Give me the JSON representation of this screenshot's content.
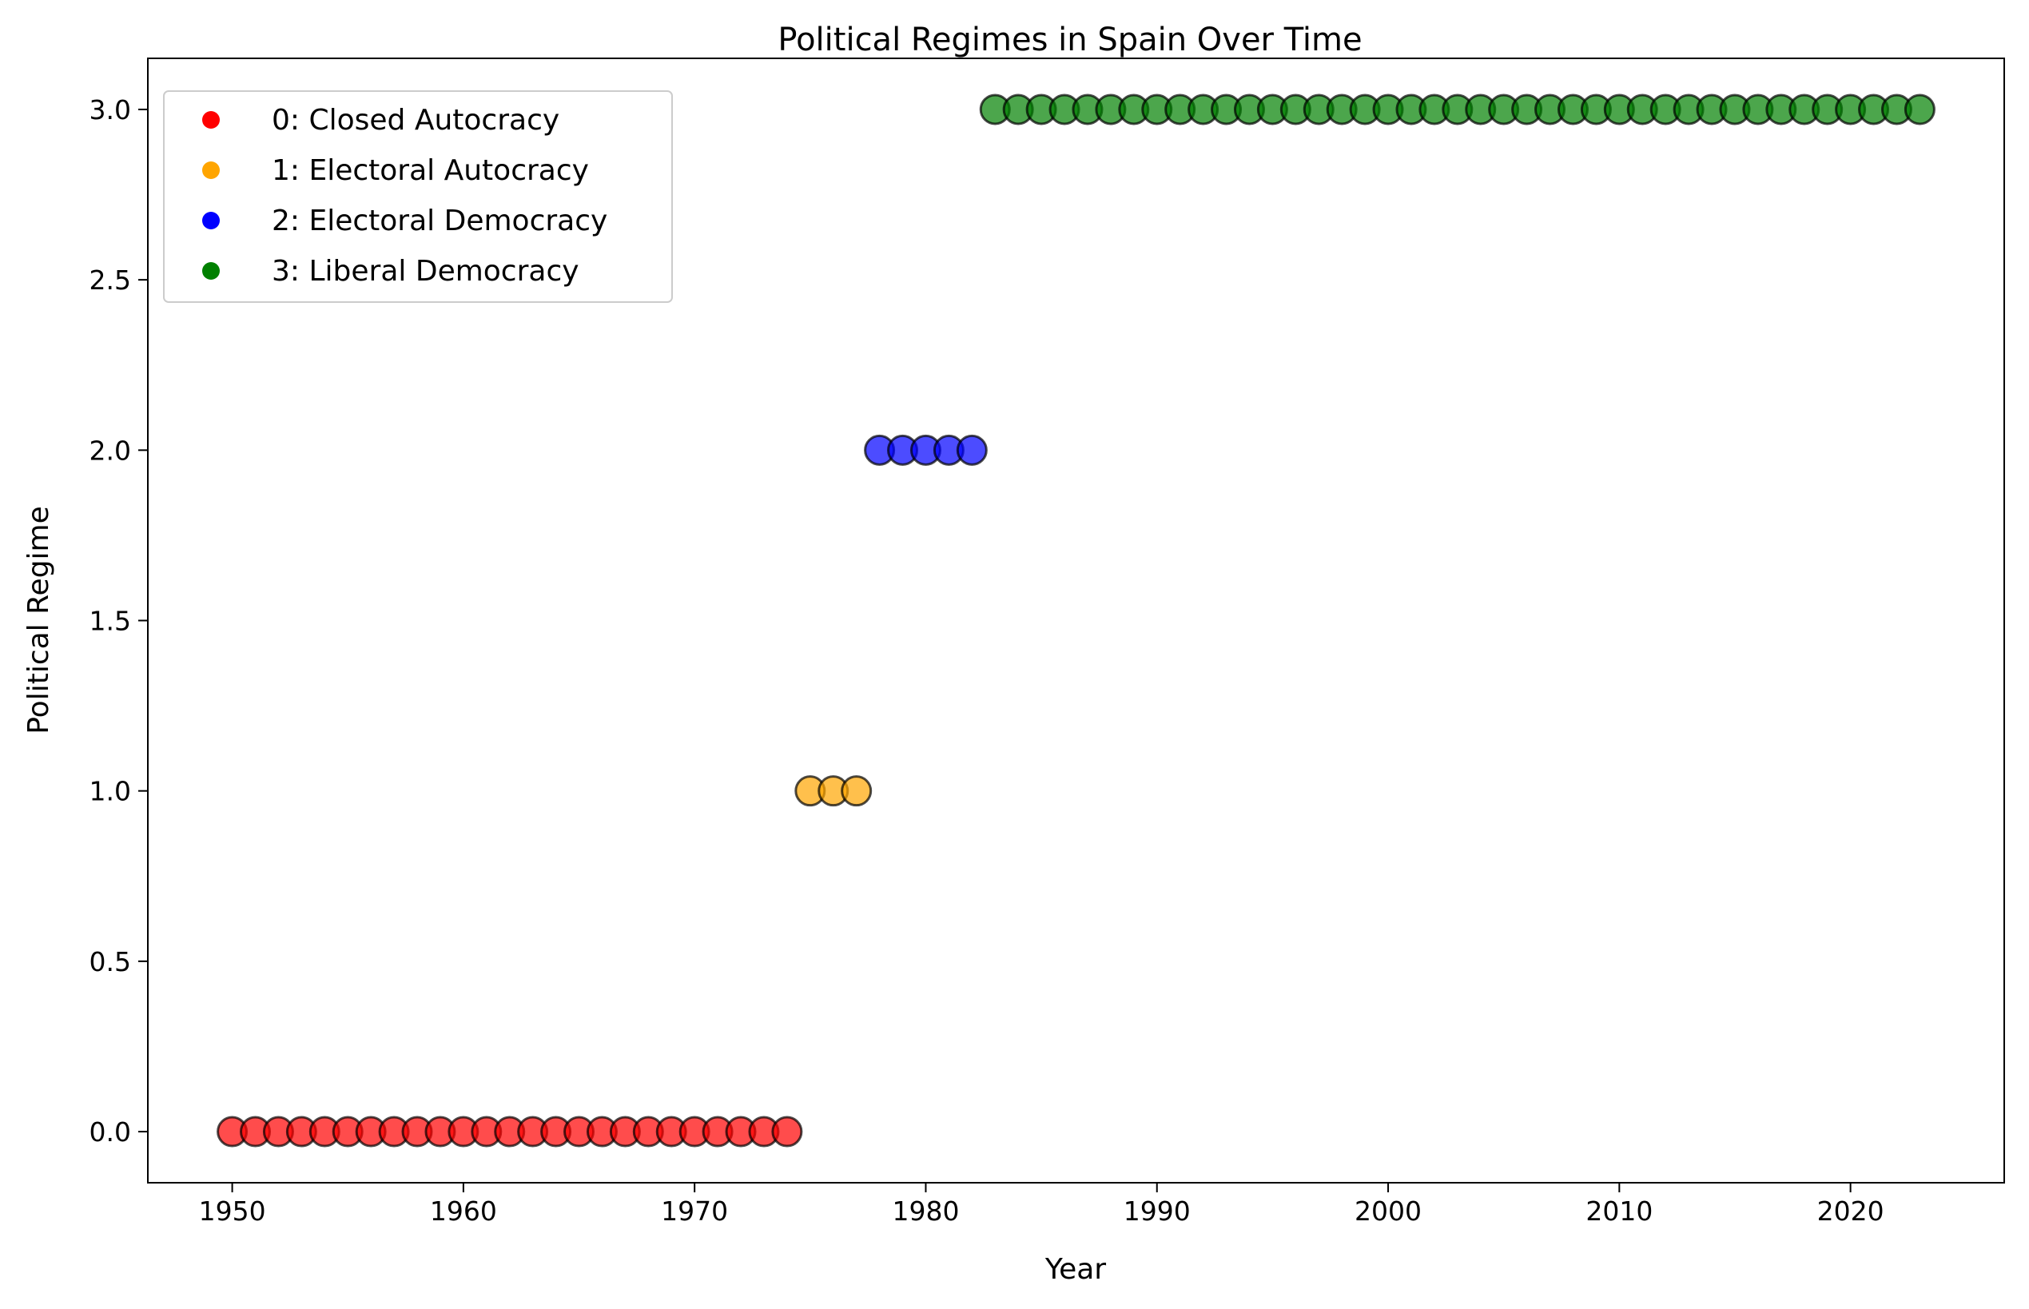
{
  "chart_data": {
    "type": "scatter",
    "title": "Political Regimes in Spain Over Time",
    "xlabel": "Year",
    "ylabel": "Political Regime",
    "xlim": [
      1946.35,
      2026.65
    ],
    "ylim": [
      -0.15,
      3.15
    ],
    "xticks": [
      1950,
      1960,
      1970,
      1980,
      1990,
      2000,
      2010,
      2020
    ],
    "xtick_labels": [
      "1950",
      "1960",
      "1970",
      "1980",
      "1990",
      "2000",
      "2010",
      "2020"
    ],
    "yticks": [
      0,
      0.5,
      1,
      1.5,
      2,
      2.5,
      3
    ],
    "ytick_labels": [
      "0.0",
      "0.5",
      "1.0",
      "1.5",
      "2.0",
      "2.5",
      "3.0"
    ],
    "grid": false,
    "legend_position": "top-left",
    "marker_edge_color": "#000000",
    "marker_alpha": 0.7,
    "series": [
      {
        "name": "0: Closed Autocracy",
        "color": "#ff0000",
        "x": [
          1950,
          1951,
          1952,
          1953,
          1954,
          1955,
          1956,
          1957,
          1958,
          1959,
          1960,
          1961,
          1962,
          1963,
          1964,
          1965,
          1966,
          1967,
          1968,
          1969,
          1970,
          1971,
          1972,
          1973,
          1974
        ],
        "y": [
          0,
          0,
          0,
          0,
          0,
          0,
          0,
          0,
          0,
          0,
          0,
          0,
          0,
          0,
          0,
          0,
          0,
          0,
          0,
          0,
          0,
          0,
          0,
          0,
          0
        ]
      },
      {
        "name": "1: Electoral Autocracy",
        "color": "#ffa500",
        "x": [
          1975,
          1976,
          1977
        ],
        "y": [
          1,
          1,
          1
        ]
      },
      {
        "name": "2: Electoral Democracy",
        "color": "#0000ff",
        "x": [
          1978,
          1979,
          1980,
          1981,
          1982
        ],
        "y": [
          2,
          2,
          2,
          2,
          2
        ]
      },
      {
        "name": "3: Liberal Democracy",
        "color": "#008000",
        "x": [
          1983,
          1984,
          1985,
          1986,
          1987,
          1988,
          1989,
          1990,
          1991,
          1992,
          1993,
          1994,
          1995,
          1996,
          1997,
          1998,
          1999,
          2000,
          2001,
          2002,
          2003,
          2004,
          2005,
          2006,
          2007,
          2008,
          2009,
          2010,
          2011,
          2012,
          2013,
          2014,
          2015,
          2016,
          2017,
          2018,
          2019,
          2020,
          2021,
          2022,
          2023
        ],
        "y": [
          3,
          3,
          3,
          3,
          3,
          3,
          3,
          3,
          3,
          3,
          3,
          3,
          3,
          3,
          3,
          3,
          3,
          3,
          3,
          3,
          3,
          3,
          3,
          3,
          3,
          3,
          3,
          3,
          3,
          3,
          3,
          3,
          3,
          3,
          3,
          3,
          3,
          3,
          3,
          3,
          3
        ]
      }
    ]
  }
}
